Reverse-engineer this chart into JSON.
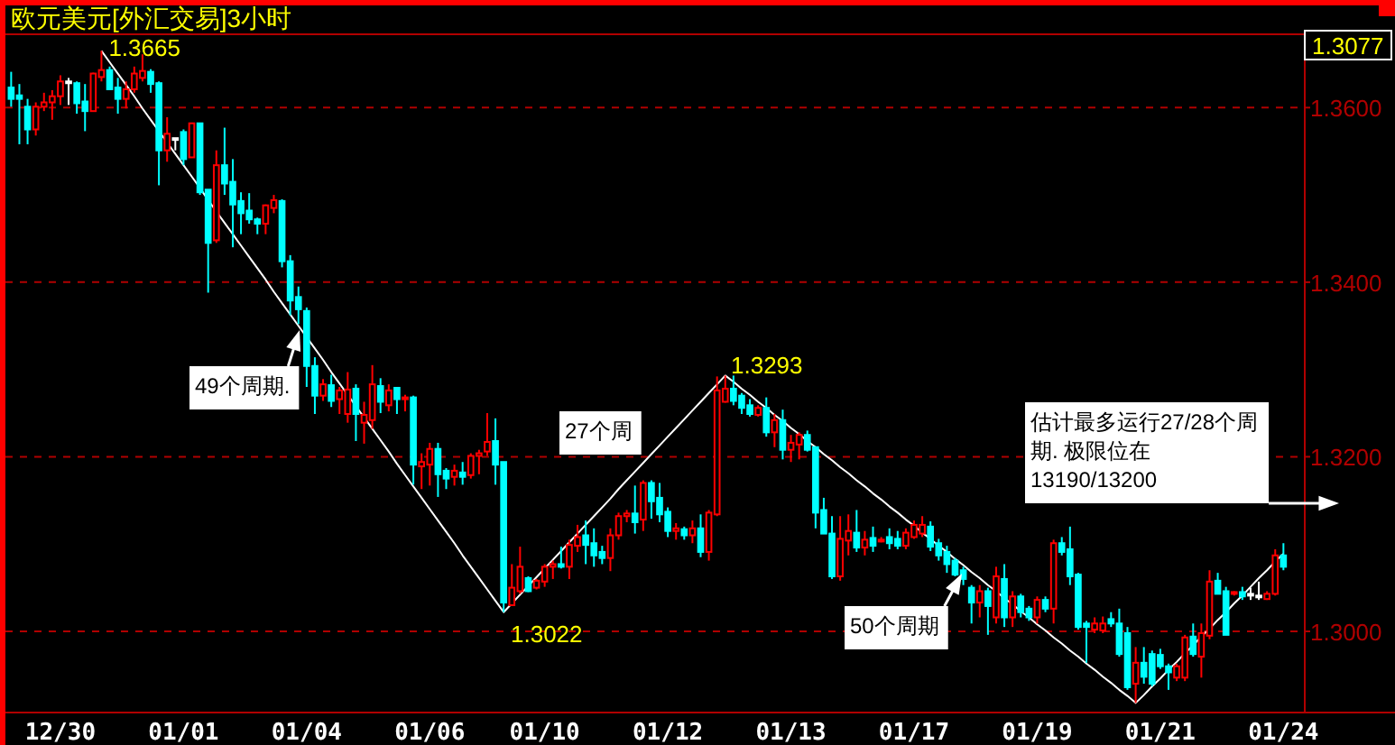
{
  "chart_data": {
    "type": "candlestick",
    "title": "欧元美元[外汇交易]3小时",
    "categories": [
      null,
      null,
      null,
      null,
      null,
      null,
      "12/30",
      null,
      null,
      null,
      null,
      null,
      null,
      null,
      null,
      null,
      null,
      null,
      null,
      null,
      null,
      "01/01",
      null,
      null,
      null,
      null,
      null,
      null,
      null,
      null,
      null,
      null,
      null,
      null,
      null,
      null,
      "01/04",
      null,
      null,
      null,
      null,
      null,
      null,
      null,
      null,
      null,
      null,
      null,
      null,
      null,
      null,
      "01/06",
      null,
      null,
      null,
      null,
      null,
      null,
      null,
      null,
      null,
      null,
      null,
      null,
      null,
      "01/10",
      null,
      null,
      null,
      null,
      null,
      null,
      null,
      null,
      null,
      null,
      null,
      null,
      null,
      null,
      "01/12",
      null,
      null,
      null,
      null,
      null,
      null,
      null,
      null,
      null,
      null,
      null,
      null,
      null,
      null,
      "01/13",
      null,
      null,
      null,
      null,
      null,
      null,
      null,
      null,
      null,
      null,
      null,
      null,
      null,
      null,
      "01/17",
      null,
      null,
      null,
      null,
      null,
      null,
      null,
      null,
      null,
      null,
      null,
      null,
      null,
      null,
      "01/19",
      null,
      null,
      null,
      null,
      null,
      null,
      null,
      null,
      null,
      null,
      null,
      null,
      null,
      null,
      "01/21",
      null,
      null,
      null,
      null,
      null,
      null,
      null,
      null,
      null,
      null,
      null,
      null,
      null,
      null,
      "01/24"
    ],
    "ohlc": [
      [
        1.3623,
        1.3641,
        1.3601,
        1.361
      ],
      [
        1.3614,
        1.3627,
        1.3558,
        1.361
      ],
      [
        1.3601,
        1.361,
        1.3558,
        1.3575
      ],
      [
        1.3575,
        1.3606,
        1.3568,
        1.3601
      ],
      [
        1.3601,
        1.3617,
        1.3596,
        1.3606
      ],
      [
        1.3606,
        1.362,
        1.3586,
        1.3613
      ],
      [
        1.3613,
        1.3637,
        1.3603,
        1.363
      ],
      [
        1.363,
        1.3634,
        1.3603,
        1.363
      ],
      [
        1.3628,
        1.363,
        1.3593,
        1.3605
      ],
      [
        1.3607,
        1.3627,
        1.3573,
        1.3596
      ],
      [
        1.3596,
        1.364,
        1.3596,
        1.3639
      ],
      [
        1.3635,
        1.3665,
        1.363,
        1.3643
      ],
      [
        1.3643,
        1.3647,
        1.362,
        1.3621
      ],
      [
        1.3623,
        1.3634,
        1.3593,
        1.361
      ],
      [
        1.361,
        1.363,
        1.3599,
        1.3621
      ],
      [
        1.3621,
        1.3647,
        1.3617,
        1.3639
      ],
      [
        1.3634,
        1.3661,
        1.363,
        1.3642
      ],
      [
        1.3641,
        1.3644,
        1.3617,
        1.3627
      ],
      [
        1.3628,
        1.363,
        1.3511,
        1.3551
      ],
      [
        1.3551,
        1.3589,
        1.3538,
        1.357
      ],
      [
        1.3565,
        1.3565,
        1.3551,
        1.3565
      ],
      [
        1.3572,
        1.3575,
        1.3534,
        1.3541
      ],
      [
        1.3543,
        1.3582,
        1.3543,
        1.3582
      ],
      [
        1.3582,
        1.3582,
        1.35,
        1.3503
      ],
      [
        1.3506,
        1.3506,
        1.3388,
        1.3445
      ],
      [
        1.3448,
        1.3551,
        1.3445,
        1.3534
      ],
      [
        1.3534,
        1.3577,
        1.35,
        1.3513
      ],
      [
        1.3515,
        1.3541,
        1.344,
        1.3489
      ],
      [
        1.3493,
        1.3503,
        1.3455,
        1.3479
      ],
      [
        1.3482,
        1.3502,
        1.3467,
        1.3472
      ],
      [
        1.3472,
        1.3474,
        1.3455,
        1.3467
      ],
      [
        1.3467,
        1.3489,
        1.3455,
        1.3488
      ],
      [
        1.3485,
        1.35,
        1.3479,
        1.3494
      ],
      [
        1.3493,
        1.3495,
        1.3417,
        1.3424
      ],
      [
        1.3424,
        1.3431,
        1.3362,
        1.3379
      ],
      [
        1.3383,
        1.3395,
        1.3352,
        1.3369
      ],
      [
        1.3367,
        1.3371,
        1.328,
        1.3304
      ],
      [
        1.3304,
        1.3314,
        1.3249,
        1.327
      ],
      [
        1.327,
        1.3289,
        1.3264,
        1.3283
      ],
      [
        1.3282,
        1.3294,
        1.3257,
        1.3264
      ],
      [
        1.3266,
        1.328,
        1.3249,
        1.3276
      ],
      [
        1.3249,
        1.3297,
        1.3239,
        1.3277
      ],
      [
        1.3278,
        1.3283,
        1.3218,
        1.3249
      ],
      [
        1.3239,
        1.3263,
        1.3215,
        1.3248
      ],
      [
        1.3242,
        1.3305,
        1.3232,
        1.3283
      ],
      [
        1.3281,
        1.329,
        1.325,
        1.3263
      ],
      [
        1.3259,
        1.3283,
        1.3252,
        1.3276
      ],
      [
        1.3279,
        1.328,
        1.3249,
        1.3266
      ],
      [
        1.3266,
        1.3271,
        1.3252,
        1.3268
      ],
      [
        1.3268,
        1.327,
        1.3168,
        1.3191
      ],
      [
        1.3189,
        1.3204,
        1.3163,
        1.3194
      ],
      [
        1.3191,
        1.3216,
        1.3167,
        1.3209
      ],
      [
        1.3209,
        1.3216,
        1.3154,
        1.318
      ],
      [
        1.3184,
        1.3187,
        1.3163,
        1.3175
      ],
      [
        1.3177,
        1.3191,
        1.3167,
        1.3184
      ],
      [
        1.3182,
        1.3194,
        1.3168,
        1.3177
      ],
      [
        1.3179,
        1.3204,
        1.3175,
        1.3201
      ],
      [
        1.3201,
        1.3208,
        1.318,
        1.3204
      ],
      [
        1.3206,
        1.325,
        1.3201,
        1.3217
      ],
      [
        1.3218,
        1.3244,
        1.3168,
        1.3191
      ],
      [
        1.3194,
        1.3194,
        1.3022,
        1.3033
      ],
      [
        1.303,
        1.3077,
        1.3029,
        1.305
      ],
      [
        1.3046,
        1.3097,
        1.3043,
        1.3074
      ],
      [
        1.3061,
        1.3063,
        1.3045,
        1.3046
      ],
      [
        1.305,
        1.306,
        1.3048,
        1.3058
      ],
      [
        1.3057,
        1.3077,
        1.3051,
        1.3074
      ],
      [
        1.3074,
        1.3081,
        1.306,
        1.3077
      ],
      [
        1.3077,
        1.3097,
        1.3072,
        1.3074
      ],
      [
        1.3074,
        1.3105,
        1.306,
        1.3099
      ],
      [
        1.3098,
        1.3122,
        1.3091,
        1.3108
      ],
      [
        1.311,
        1.3127,
        1.3077,
        1.3099
      ],
      [
        1.3101,
        1.3118,
        1.3074,
        1.3087
      ],
      [
        1.3091,
        1.3098,
        1.3077,
        1.3084
      ],
      [
        1.3084,
        1.3118,
        1.3069,
        1.311
      ],
      [
        1.311,
        1.3136,
        1.3105,
        1.3132
      ],
      [
        1.3132,
        1.3139,
        1.3125,
        1.3135
      ],
      [
        1.3135,
        1.3167,
        1.3112,
        1.3125
      ],
      [
        1.3128,
        1.3173,
        1.3115,
        1.317
      ],
      [
        1.317,
        1.3173,
        1.3129,
        1.3149
      ],
      [
        1.3153,
        1.317,
        1.3125,
        1.3134
      ],
      [
        1.3137,
        1.3142,
        1.3108,
        1.3115
      ],
      [
        1.3115,
        1.3124,
        1.3105,
        1.3118
      ],
      [
        1.3117,
        1.312,
        1.3105,
        1.311
      ],
      [
        1.311,
        1.3127,
        1.3101,
        1.3118
      ],
      [
        1.3118,
        1.3134,
        1.3085,
        1.3091
      ],
      [
        1.3091,
        1.3139,
        1.3081,
        1.3136
      ],
      [
        1.3134,
        1.3292,
        1.3132,
        1.3276
      ],
      [
        1.3263,
        1.3293,
        1.3262,
        1.3278
      ],
      [
        1.3278,
        1.3293,
        1.3259,
        1.3264
      ],
      [
        1.327,
        1.3273,
        1.3249,
        1.3256
      ],
      [
        1.3259,
        1.3266,
        1.3246,
        1.3249
      ],
      [
        1.3248,
        1.3259,
        1.3246,
        1.3256
      ],
      [
        1.3256,
        1.3268,
        1.3223,
        1.3228
      ],
      [
        1.3228,
        1.3249,
        1.3211,
        1.3242
      ],
      [
        1.3242,
        1.3254,
        1.3197,
        1.3208
      ],
      [
        1.3208,
        1.3225,
        1.3194,
        1.3216
      ],
      [
        1.3214,
        1.3228,
        1.3197,
        1.3225
      ],
      [
        1.3225,
        1.323,
        1.3206,
        1.3208
      ],
      [
        1.3211,
        1.3211,
        1.3118,
        1.3136
      ],
      [
        1.3139,
        1.3153,
        1.3112,
        1.3112
      ],
      [
        1.3112,
        1.3132,
        1.306,
        1.3063
      ],
      [
        1.3063,
        1.3132,
        1.3058,
        1.3106
      ],
      [
        1.3104,
        1.3134,
        1.3087,
        1.3115
      ],
      [
        1.3113,
        1.3139,
        1.3091,
        1.3096
      ],
      [
        1.3096,
        1.3115,
        1.3087,
        1.3105
      ],
      [
        1.3107,
        1.312,
        1.3091,
        1.3098
      ],
      [
        1.3104,
        1.3108,
        1.3102,
        1.3105
      ],
      [
        1.3108,
        1.3118,
        1.3094,
        1.3101
      ],
      [
        1.3106,
        1.3115,
        1.3094,
        1.3098
      ],
      [
        1.3098,
        1.3118,
        1.3094,
        1.3113
      ],
      [
        1.3108,
        1.3127,
        1.3106,
        1.3122
      ],
      [
        1.3112,
        1.3132,
        1.3108,
        1.3122
      ],
      [
        1.312,
        1.3126,
        1.3092,
        1.3097
      ],
      [
        1.3101,
        1.3106,
        1.3081,
        1.3087
      ],
      [
        1.3091,
        1.3098,
        1.3067,
        1.3077
      ],
      [
        1.3081,
        1.3084,
        1.3063,
        1.3065
      ],
      [
        1.307,
        1.3074,
        1.3053,
        1.306
      ],
      [
        1.305,
        1.3053,
        1.3009,
        1.3033
      ],
      [
        1.3033,
        1.3053,
        1.3016,
        1.3046
      ],
      [
        1.3046,
        1.305,
        1.2996,
        1.3029
      ],
      [
        1.3016,
        1.3074,
        1.3009,
        1.3063
      ],
      [
        1.306,
        1.3077,
        1.3005,
        1.3016
      ],
      [
        1.3016,
        1.3046,
        1.3005,
        1.304
      ],
      [
        1.304,
        1.3043,
        1.3016,
        1.3022
      ],
      [
        1.3026,
        1.3029,
        1.3012,
        1.3016
      ],
      [
        1.3016,
        1.304,
        1.3009,
        1.3036
      ],
      [
        1.3036,
        1.304,
        1.3022,
        1.3026
      ],
      [
        1.3026,
        1.3105,
        1.3009,
        1.3101
      ],
      [
        1.3101,
        1.3108,
        1.3087,
        1.3091
      ],
      [
        1.3094,
        1.312,
        1.3053,
        1.3063
      ],
      [
        1.3065,
        1.3067,
        1.3002,
        1.3005
      ],
      [
        1.3009,
        1.3012,
        1.2964,
        1.3005
      ],
      [
        1.3002,
        1.3016,
        1.2998,
        1.3009
      ],
      [
        1.3001,
        1.3017,
        1.2998,
        1.3009
      ],
      [
        1.3014,
        1.3022,
        1.3005,
        1.3009
      ],
      [
        1.3009,
        1.3026,
        1.2971,
        1.2974
      ],
      [
        1.2998,
        1.3005,
        1.2933,
        1.2936
      ],
      [
        1.294,
        1.2982,
        1.2918,
        1.2964
      ],
      [
        1.2964,
        1.2982,
        1.294,
        1.2948
      ],
      [
        1.2974,
        1.2978,
        1.2937,
        1.294
      ],
      [
        1.2973,
        1.298,
        1.2957,
        1.296
      ],
      [
        1.296,
        1.2963,
        1.2933,
        1.2953
      ],
      [
        1.2947,
        1.2963,
        1.2943,
        1.296
      ],
      [
        1.2947,
        1.2996,
        1.2943,
        1.2993
      ],
      [
        1.2994,
        1.3009,
        1.2971,
        1.2974
      ],
      [
        1.2971,
        1.3009,
        1.2947,
        1.2998
      ],
      [
        1.2995,
        1.307,
        1.2991,
        1.3057
      ],
      [
        1.3058,
        1.3067,
        1.3043,
        1.3043
      ],
      [
        1.3046,
        1.3051,
        1.2996,
        1.2996
      ],
      [
        1.3043,
        1.3046,
        1.3041,
        1.3045
      ],
      [
        1.3045,
        1.3051,
        1.3036,
        1.304
      ],
      [
        1.3043,
        1.305,
        1.3036,
        1.3043
      ],
      [
        1.3041,
        1.3057,
        1.3036,
        1.3041
      ],
      [
        1.3037,
        1.3046,
        1.3036,
        1.3043
      ],
      [
        1.3043,
        1.3094,
        1.3041,
        1.3087
      ],
      [
        1.3087,
        1.3101,
        1.307,
        1.3074
      ]
    ],
    "colors": [
      "#00ffff",
      "#00ffff",
      "#00ffff",
      "#ff0000",
      "#ff0000",
      "#ff0000",
      "#ff0000",
      "#ffffff",
      "#00ffff",
      "#00ffff",
      "#ff0000",
      "#ff0000",
      "#00ffff",
      "#00ffff",
      "#ff0000",
      "#ff0000",
      "#ff0000",
      "#00ffff",
      "#00ffff",
      "#ff0000",
      "#ffffff",
      "#00ffff",
      "#ff0000",
      "#00ffff",
      "#00ffff",
      "#ff0000",
      "#00ffff",
      "#00ffff",
      "#00ffff",
      "#00ffff",
      "#00ffff",
      "#ff0000",
      "#ff0000",
      "#00ffff",
      "#00ffff",
      "#00ffff",
      "#00ffff",
      "#00ffff",
      "#ff0000",
      "#00ffff",
      "#ff0000",
      "#ff0000",
      "#00ffff",
      "#ff0000",
      "#ff0000",
      "#00ffff",
      "#ff0000",
      "#00ffff",
      "#ff0000",
      "#00ffff",
      "#ff0000",
      "#ff0000",
      "#00ffff",
      "#00ffff",
      "#ff0000",
      "#00ffff",
      "#ff0000",
      "#ff0000",
      "#ff0000",
      "#00ffff",
      "#00ffff",
      "#ff0000",
      "#ff0000",
      "#00ffff",
      "#ff0000",
      "#ff0000",
      "#ff0000",
      "#00ffff",
      "#ff0000",
      "#ff0000",
      "#00ffff",
      "#00ffff",
      "#00ffff",
      "#ff0000",
      "#ff0000",
      "#ff0000",
      "#00ffff",
      "#ff0000",
      "#00ffff",
      "#00ffff",
      "#00ffff",
      "#ff0000",
      "#00ffff",
      "#ff0000",
      "#00ffff",
      "#ff0000",
      "#ff0000",
      "#ff0000",
      "#00ffff",
      "#00ffff",
      "#00ffff",
      "#ff0000",
      "#00ffff",
      "#ff0000",
      "#00ffff",
      "#ff0000",
      "#ff0000",
      "#00ffff",
      "#00ffff",
      "#00ffff",
      "#00ffff",
      "#ff0000",
      "#ff0000",
      "#00ffff",
      "#ff0000",
      "#00ffff",
      "#ff0000",
      "#00ffff",
      "#00ffff",
      "#ff0000",
      "#ff0000",
      "#ff0000",
      "#00ffff",
      "#00ffff",
      "#00ffff",
      "#00ffff",
      "#00ffff",
      "#00ffff",
      "#ff0000",
      "#00ffff",
      "#ff0000",
      "#00ffff",
      "#ff0000",
      "#00ffff",
      "#00ffff",
      "#ff0000",
      "#00ffff",
      "#ff0000",
      "#00ffff",
      "#00ffff",
      "#00ffff",
      "#00ffff",
      "#ff0000",
      "#ff0000",
      "#00ffff",
      "#00ffff",
      "#00ffff",
      "#ff0000",
      "#00ffff",
      "#00ffff",
      "#00ffff",
      "#00ffff",
      "#ff0000",
      "#ff0000",
      "#00ffff",
      "#ff0000",
      "#ff0000",
      "#00ffff",
      "#00ffff",
      "#ff0000",
      "#00ffff",
      "#ffffff",
      "#ffffff",
      "#ff0000",
      "#ff0000",
      "#00ffff"
    ],
    "series": [
      {
        "type": "line",
        "color": "#ffffff",
        "values": [
          null,
          null,
          null,
          null,
          null,
          null,
          null,
          null,
          null,
          null,
          null,
          1.3665,
          1.3652,
          1.3639,
          1.3626,
          1.3613,
          1.3599,
          1.3586,
          1.3573,
          1.356,
          1.3547,
          1.3534,
          1.3521,
          1.3508,
          1.3494,
          1.3481,
          1.3468,
          1.3455,
          1.3442,
          1.3429,
          1.3416,
          1.3403,
          1.3389,
          1.3376,
          1.3363,
          1.335,
          1.3337,
          1.3324,
          1.3311,
          1.3297,
          1.3284,
          1.3271,
          1.3258,
          1.3245,
          1.3232,
          1.3219,
          1.3206,
          1.3192,
          1.3179,
          1.3166,
          1.3153,
          1.314,
          1.3127,
          1.3114,
          1.3101,
          1.3087,
          1.3074,
          1.3061,
          1.3048,
          1.3035,
          1.3022,
          1.3032,
          1.3042,
          1.3052,
          1.3062,
          1.3072,
          1.3082,
          1.3092,
          1.3102,
          1.3112,
          1.3122,
          1.3132,
          1.3142,
          1.3152,
          1.3163,
          1.3173,
          1.3183,
          1.3193,
          1.3203,
          1.3213,
          1.3223,
          1.3233,
          1.3243,
          1.3253,
          1.3263,
          1.3273,
          1.3283,
          1.3293,
          1.3286,
          1.3278,
          1.3271,
          1.3263,
          1.3256,
          1.3248,
          1.3241,
          1.3233,
          1.3226,
          1.3218,
          1.3211,
          1.3203,
          1.3196,
          1.3188,
          1.3181,
          1.3173,
          1.3166,
          1.3158,
          1.3151,
          1.3143,
          1.3136,
          1.3128,
          1.3121,
          1.3113,
          1.3106,
          1.3098,
          1.3091,
          1.3083,
          1.3076,
          1.3068,
          1.3061,
          1.3053,
          1.3046,
          1.3038,
          1.3031,
          1.3023,
          1.3016,
          1.3008,
          1.3001,
          1.2993,
          1.2986,
          1.2978,
          1.2971,
          1.2963,
          1.2956,
          1.2948,
          1.2941,
          1.2933,
          1.2926,
          1.2918,
          1.2927,
          1.2937,
          1.2946,
          1.2956,
          1.2965,
          1.2975,
          1.2984,
          1.2994,
          1.3003,
          1.3013,
          1.3022,
          1.3032,
          1.3041,
          1.3051,
          1.3061,
          1.307,
          1.308,
          1.3089
        ]
      }
    ],
    "ylim": [
      1.2907,
      1.3684
    ],
    "yticks": [
      {
        "value": 1.3,
        "label": "1.3000"
      },
      {
        "value": 1.32,
        "label": "1.3200"
      },
      {
        "value": 1.34,
        "label": "1.3400"
      },
      {
        "value": 1.36,
        "label": "1.3600"
      }
    ],
    "grid": "y",
    "annotations": [
      {
        "text": "1.3665",
        "y": 1.3665
      },
      "1.3022",
      "1.3293",
      "49个周期.",
      "27个周",
      "50个周期",
      "估计最多运行27/28个周期. 极限位在 13190/13200",
      "1.3077"
    ]
  }
}
